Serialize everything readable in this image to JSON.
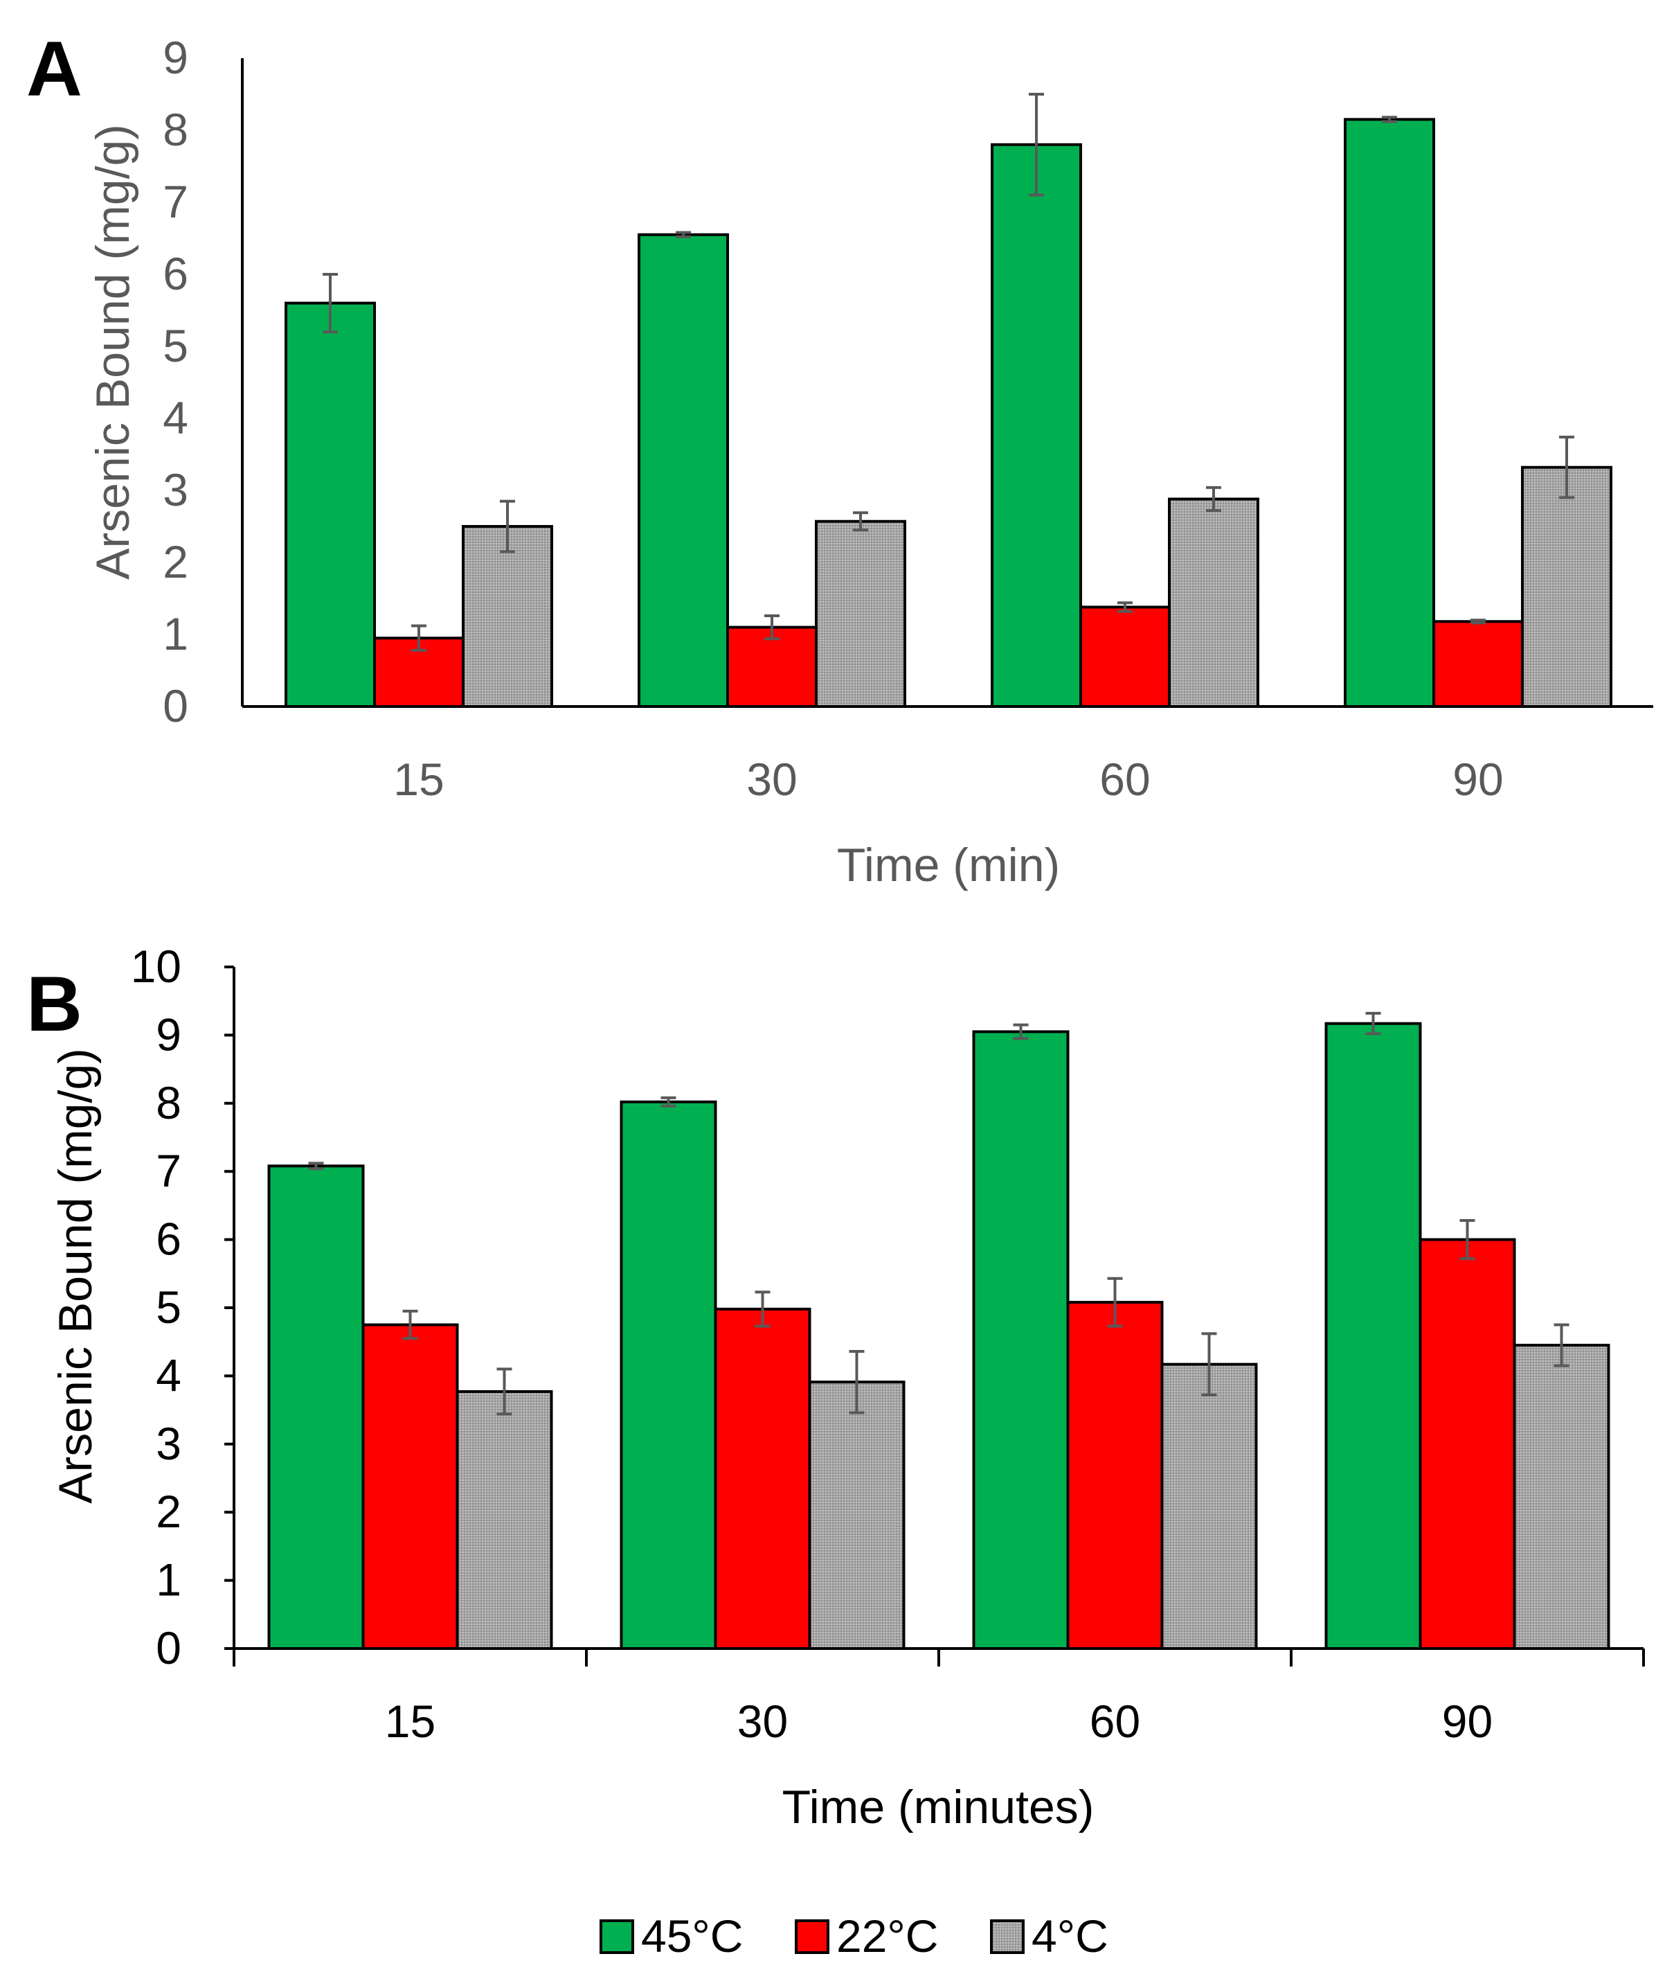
{
  "legend": {
    "items": [
      {
        "label": "45°C",
        "color": "#00b050"
      },
      {
        "label": "22°C",
        "color": "#ff0000"
      },
      {
        "label": "4°C",
        "color": "#a6a6a6"
      }
    ]
  },
  "chart_data": [
    {
      "panel": "A",
      "type": "bar",
      "title": "",
      "xlabel": "Time (min)",
      "ylabel": "Arsenic Bound (mg/g)",
      "ylim": [
        0,
        9
      ],
      "yticks": [
        0,
        1,
        2,
        3,
        4,
        5,
        6,
        7,
        8,
        9
      ],
      "categories": [
        "15",
        "30",
        "60",
        "90"
      ],
      "grid": false,
      "label_color": "#595959",
      "series": [
        {
          "name": "45°C",
          "color": "#00b050",
          "values": [
            5.6,
            6.55,
            7.8,
            8.15
          ],
          "errors": [
            0.4,
            0.03,
            0.7,
            0.03
          ]
        },
        {
          "name": "22°C",
          "color": "#ff0000",
          "values": [
            0.95,
            1.1,
            1.38,
            1.18
          ],
          "errors": [
            0.17,
            0.16,
            0.06,
            0.02
          ]
        },
        {
          "name": "4°C",
          "color": "#a6a6a6",
          "values": [
            2.5,
            2.57,
            2.88,
            3.32
          ],
          "errors": [
            0.35,
            0.12,
            0.16,
            0.42
          ]
        }
      ]
    },
    {
      "panel": "B",
      "type": "bar",
      "title": "",
      "xlabel": "Time (minutes)",
      "ylabel": "Arsenic Bound (mg/g)",
      "ylim": [
        0,
        10
      ],
      "yticks": [
        0,
        1,
        2,
        3,
        4,
        5,
        6,
        7,
        8,
        9,
        10
      ],
      "categories": [
        "15",
        "30",
        "60",
        "90"
      ],
      "grid": false,
      "label_color": "#000000",
      "series": [
        {
          "name": "45°C",
          "color": "#00b050",
          "values": [
            7.08,
            8.02,
            9.05,
            9.17
          ],
          "errors": [
            0.04,
            0.06,
            0.1,
            0.15
          ]
        },
        {
          "name": "22°C",
          "color": "#ff0000",
          "values": [
            4.75,
            4.98,
            5.08,
            6.0
          ],
          "errors": [
            0.2,
            0.25,
            0.35,
            0.28
          ]
        },
        {
          "name": "4°C",
          "color": "#a6a6a6",
          "values": [
            3.77,
            3.91,
            4.17,
            4.45
          ],
          "errors": [
            0.33,
            0.45,
            0.45,
            0.3
          ]
        }
      ]
    }
  ]
}
